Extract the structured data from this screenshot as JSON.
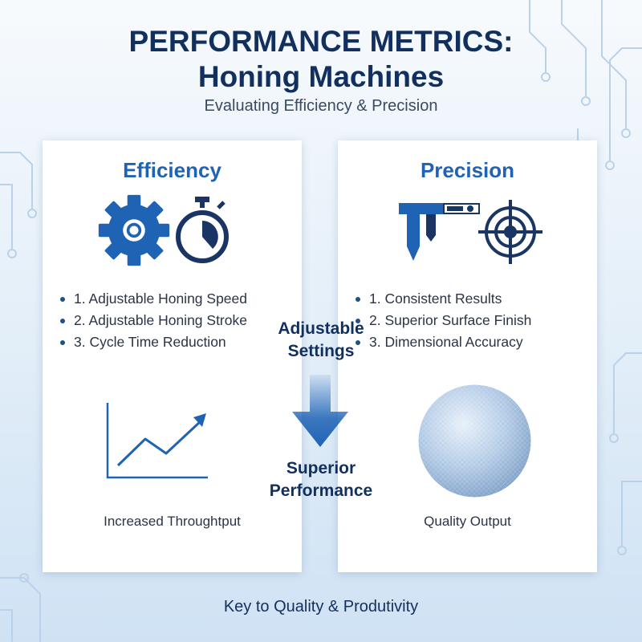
{
  "header": {
    "title_line1": "PERFORMANCE METRICS:",
    "title_line2": "Honing Machines",
    "subtitle": "Evaluating Efficiency & Precision"
  },
  "efficiency": {
    "title": "Efficiency",
    "items": [
      "1. Adjustable Honing Speed",
      "2. Adjustable Honing Stroke",
      "3. Cycle Time Reduction"
    ],
    "caption": "Increased Throughtput"
  },
  "precision": {
    "title": "Precision",
    "items": [
      "1. Consistent Results",
      "2. Superior Surface Finish",
      "3. Dimensional Accuracy"
    ],
    "caption": "Quality Output"
  },
  "center": {
    "top_line1": "Adjustable",
    "top_line2": "Settings",
    "bottom_line1": "Superior",
    "bottom_line2": "Performance"
  },
  "footer": "Key to Quality & Produtivity",
  "colors": {
    "navy": "#12305e",
    "accent_blue": "#1f63b5",
    "dark_icon": "#1a3563"
  },
  "icons": [
    "gear-icon",
    "stopwatch-icon",
    "caliper-icon",
    "target-icon",
    "growth-chart-icon",
    "down-arrow-icon",
    "sphere-icon"
  ]
}
